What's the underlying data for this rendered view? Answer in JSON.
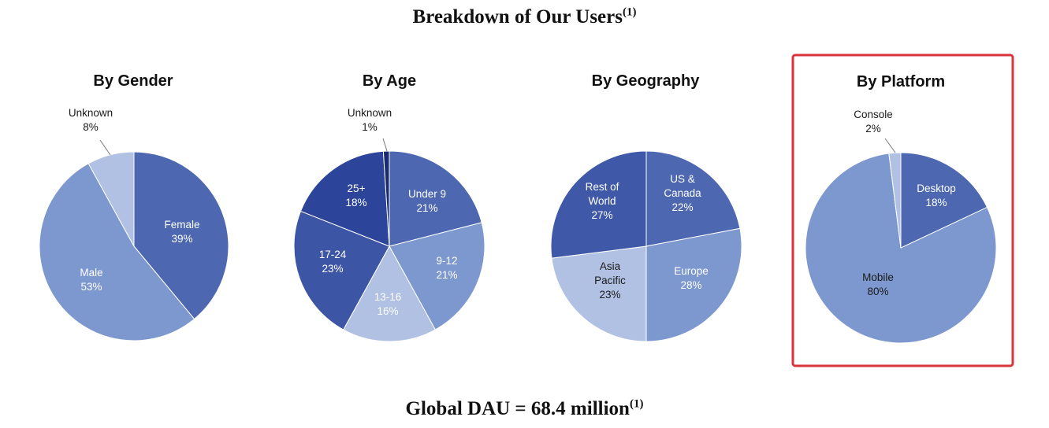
{
  "title": {
    "text": "Breakdown of Our Users",
    "superscript": "(1)"
  },
  "footer": {
    "text": "Global DAU = 68.4 million",
    "superscript": "(1)"
  },
  "highlight_color": "#d9333b",
  "chart_data": [
    {
      "type": "pie",
      "title": "By Gender",
      "slices": [
        {
          "label": "Female",
          "value": 39,
          "display": "39%",
          "color": "#4d67b1"
        },
        {
          "label": "Male",
          "value": 53,
          "display": "53%",
          "color": "#7d98cf"
        },
        {
          "label": "Unknown",
          "value": 8,
          "display": "8%",
          "color": "#b0c1e3"
        }
      ]
    },
    {
      "type": "pie",
      "title": "By Age",
      "slices": [
        {
          "label": "Under 9",
          "value": 21,
          "display": "21%",
          "color": "#4d67b1"
        },
        {
          "label": "9-12",
          "value": 21,
          "display": "21%",
          "color": "#7d98cf"
        },
        {
          "label": "13-16",
          "value": 16,
          "display": "16%",
          "color": "#b0c1e3"
        },
        {
          "label": "17-24",
          "value": 23,
          "display": "23%",
          "color": "#3c55a5"
        },
        {
          "label": "25+",
          "value": 18,
          "display": "18%",
          "color": "#2c449a"
        },
        {
          "label": "Unknown",
          "value": 1,
          "display": "1%",
          "color": "#1b2c6e"
        }
      ]
    },
    {
      "type": "pie",
      "title": "By Geography",
      "slices": [
        {
          "label": "US & Canada",
          "value": 22,
          "display": "22%",
          "color": "#4d67b1"
        },
        {
          "label": "Europe",
          "value": 28,
          "display": "28%",
          "color": "#7d98cf"
        },
        {
          "label": "Asia Pacific",
          "value": 23,
          "display": "23%",
          "color": "#b0c1e3"
        },
        {
          "label": "Rest of World",
          "value": 27,
          "display": "27%",
          "color": "#3f58a8"
        }
      ]
    },
    {
      "type": "pie",
      "title": "By Platform",
      "highlighted": true,
      "slices": [
        {
          "label": "Desktop",
          "value": 18,
          "display": "18%",
          "color": "#4d67b1"
        },
        {
          "label": "Mobile",
          "value": 80,
          "display": "80%",
          "color": "#7d98cf"
        },
        {
          "label": "Console",
          "value": 2,
          "display": "2%",
          "color": "#b0c1e3"
        }
      ]
    }
  ]
}
